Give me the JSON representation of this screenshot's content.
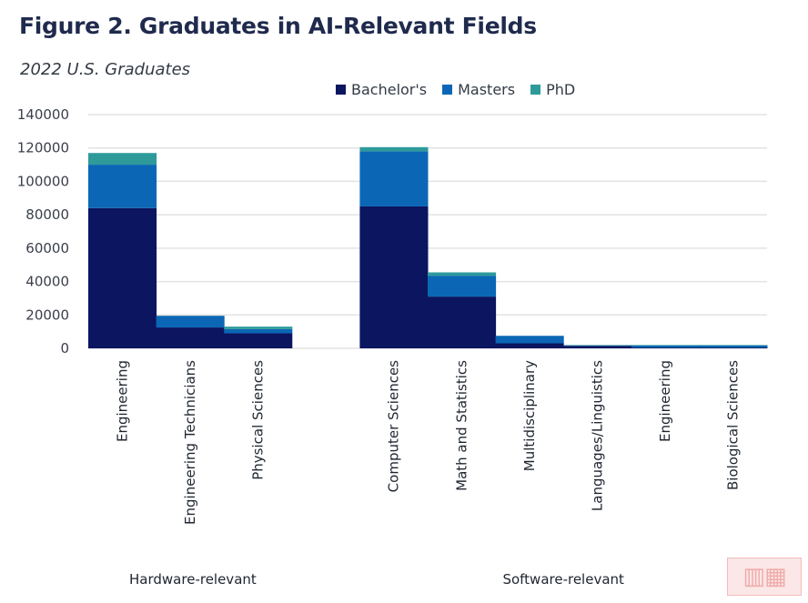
{
  "chart_data": {
    "type": "bar",
    "stacked": true,
    "title": "Figure 2. Graduates in AI-Relevant Fields",
    "subtitle": "2022 U.S. Graduates",
    "xlabel": "",
    "ylabel": "",
    "ylim": [
      0,
      140000
    ],
    "yticks": [
      "0",
      "20000",
      "40000",
      "60000",
      "80000",
      "100000",
      "120000",
      "140000"
    ],
    "ytick_values": [
      0,
      20000,
      40000,
      60000,
      80000,
      100000,
      120000,
      140000
    ],
    "grid": true,
    "legend_position": "top-center",
    "groups": [
      {
        "label": "Hardware-relevant",
        "categories": [
          "Engineering",
          "Engineering Technicians",
          "Physical Sciences"
        ]
      },
      {
        "label": "Software-relevant",
        "categories": [
          "Computer Sciences",
          "Math and Statistics",
          "Multidisciplinary",
          "Languages/Linguistics",
          "Engineering",
          "Biological Sciences"
        ]
      }
    ],
    "categories": [
      "Engineering",
      "Engineering Technicians",
      "Physical Sciences",
      "Computer Sciences",
      "Math and Statistics",
      "Multidisciplinary",
      "Languages/Linguistics",
      "Engineering",
      "Biological Sciences"
    ],
    "series": [
      {
        "name": "Bachelor's",
        "color": "#0b1560",
        "values": [
          84000,
          12500,
          9000,
          85000,
          31000,
          3000,
          1500,
          500,
          500
        ]
      },
      {
        "name": "Masters",
        "color": "#0b67b5",
        "values": [
          26000,
          7000,
          2500,
          33000,
          12500,
          4500,
          300,
          1200,
          1200
        ]
      },
      {
        "name": "PhD",
        "color": "#2e9a9a",
        "values": [
          7000,
          0,
          1500,
          2500,
          2000,
          0,
          200,
          300,
          300
        ]
      }
    ]
  },
  "watermark": {
    "text": "楼兰"
  },
  "colors": {
    "title": "#1f2a4d",
    "grid": "#e3e3e3"
  }
}
